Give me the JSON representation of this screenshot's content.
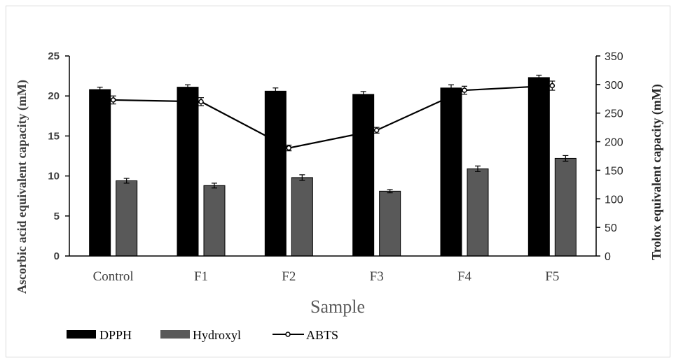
{
  "chart_data": {
    "type": "bar",
    "categories": [
      "Control",
      "F1",
      "F2",
      "F3",
      "F4",
      "F5"
    ],
    "xlabel": "Sample",
    "ylabel": "Ascorbic acid equivalent capacity (mM)",
    "y2label": "Trolox equivalent capacity (mM)",
    "ylim": [
      0,
      25
    ],
    "yticks": [
      0,
      5,
      10,
      15,
      20,
      25
    ],
    "y2lim": [
      0,
      350
    ],
    "y2ticks": [
      0,
      50,
      100,
      150,
      200,
      250,
      300,
      350
    ],
    "legend_position": "bottom-left",
    "grid": false,
    "series": [
      {
        "name": "DPPH",
        "kind": "bar",
        "axis": "left",
        "color": "#000000",
        "values": [
          20.8,
          21.1,
          20.6,
          20.2,
          21.0,
          22.3
        ],
        "errors": [
          0.3,
          0.3,
          0.4,
          0.35,
          0.4,
          0.3
        ]
      },
      {
        "name": "Hydroxyl",
        "kind": "bar",
        "axis": "left",
        "color": "#595959",
        "values": [
          9.4,
          8.8,
          9.8,
          8.1,
          10.9,
          12.2
        ],
        "errors": [
          0.3,
          0.3,
          0.35,
          0.2,
          0.35,
          0.35
        ]
      },
      {
        "name": "ABTS",
        "kind": "line",
        "axis": "right",
        "color": "#000000",
        "values": [
          273,
          270,
          189,
          220,
          290,
          298
        ],
        "errors": [
          7,
          7,
          5,
          5,
          7,
          8
        ]
      }
    ]
  }
}
